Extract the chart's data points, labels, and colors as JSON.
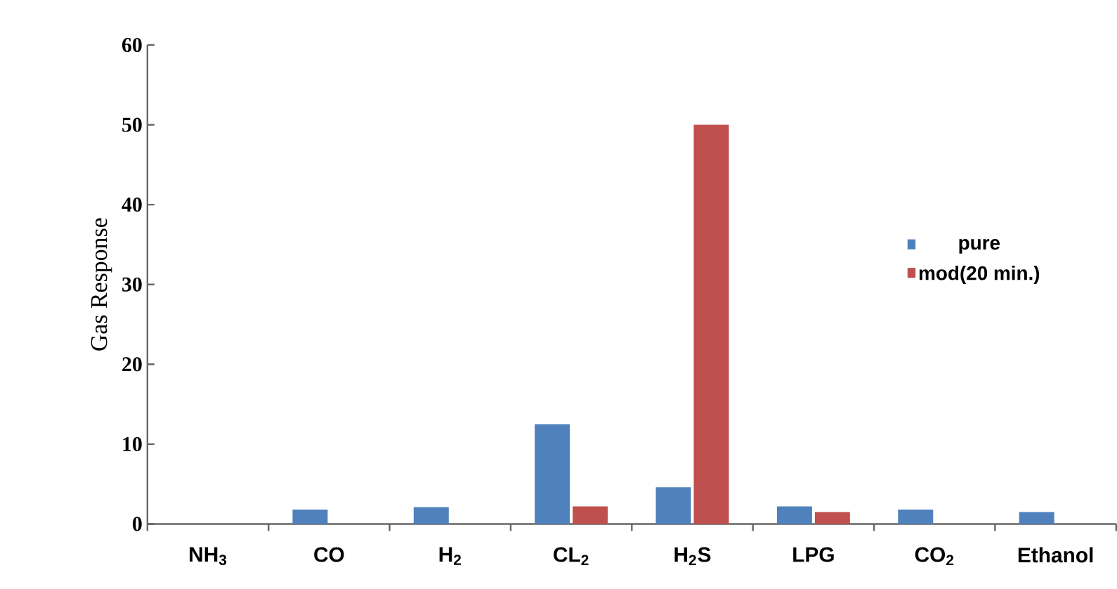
{
  "chart_data": {
    "type": "bar",
    "ylabel": "Gas Response",
    "categories": [
      "NH$_{3}$",
      "CO",
      "H$_{2}$",
      "CL$_{2}$",
      "H$_{2}$S",
      "LPG",
      "CO$_{2}$",
      "Ethanol"
    ],
    "series": [
      {
        "name": "pure",
        "color": "#4f81bd",
        "values": [
          null,
          1.8,
          2.1,
          12.5,
          4.6,
          2.2,
          1.8,
          1.5
        ]
      },
      {
        "name": "mod(20 min.)",
        "color": "#c0504d",
        "values": [
          null,
          null,
          null,
          2.2,
          50,
          1.5,
          null,
          null
        ]
      }
    ],
    "ylim": [
      0,
      60
    ],
    "yticks": [
      0,
      10,
      20,
      30,
      40,
      50,
      60
    ],
    "grid": false,
    "legend": "right"
  }
}
